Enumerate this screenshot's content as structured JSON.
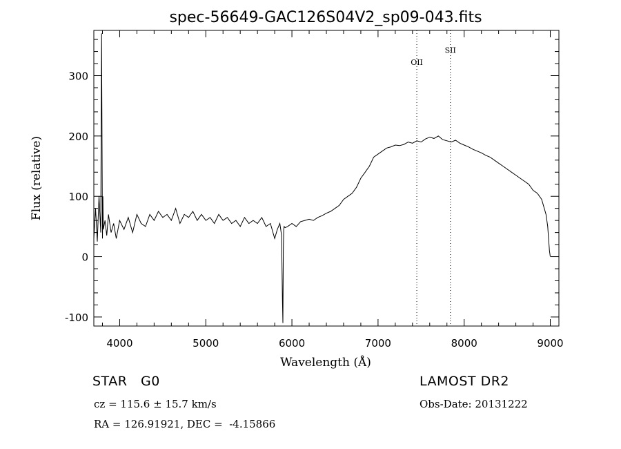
{
  "chart_data": {
    "type": "line",
    "title": "spec-56649-GAC126S04V2_sp09-043.fits",
    "xlabel": "Wavelength (Å)",
    "ylabel": "Flux (relative)",
    "xlim": [
      3700,
      9100
    ],
    "ylim": [
      -115,
      375
    ],
    "x_ticks": [
      4000,
      5000,
      6000,
      7000,
      8000,
      9000
    ],
    "y_ticks": [
      -100,
      0,
      100,
      200,
      300
    ],
    "grid": false,
    "line_color": "#000000",
    "series": [
      {
        "x": [
          3700,
          3720,
          3740,
          3760,
          3780,
          3790,
          3800,
          3805,
          3810,
          3830,
          3850,
          3870,
          3900,
          3930,
          3960,
          4000,
          4050,
          4100,
          4150,
          4200,
          4250,
          4300,
          4350,
          4400,
          4450,
          4500,
          4550,
          4600,
          4650,
          4700,
          4750,
          4800,
          4850,
          4900,
          4950,
          5000,
          5050,
          5100,
          5150,
          5200,
          5250,
          5300,
          5350,
          5400,
          5450,
          5500,
          5550,
          5600,
          5650,
          5700,
          5750,
          5780,
          5800,
          5830,
          5860,
          5880,
          5890,
          5895,
          5900,
          5905,
          5910,
          5920,
          5950,
          6000,
          6050,
          6100,
          6150,
          6200,
          6250,
          6300,
          6350,
          6400,
          6450,
          6500,
          6550,
          6600,
          6650,
          6700,
          6750,
          6800,
          6850,
          6900,
          6950,
          7000,
          7050,
          7100,
          7150,
          7200,
          7250,
          7300,
          7350,
          7400,
          7450,
          7500,
          7550,
          7600,
          7650,
          7700,
          7750,
          7800,
          7850,
          7900,
          7950,
          8000,
          8050,
          8100,
          8150,
          8200,
          8250,
          8300,
          8350,
          8400,
          8450,
          8500,
          8550,
          8600,
          8650,
          8700,
          8750,
          8800,
          8850,
          8900,
          8930,
          8950,
          8970,
          8980,
          8990,
          9000
        ],
        "y": [
          30,
          80,
          25,
          100,
          40,
          370,
          30,
          100,
          45,
          60,
          35,
          70,
          40,
          55,
          30,
          60,
          45,
          65,
          40,
          70,
          55,
          50,
          70,
          60,
          75,
          65,
          70,
          60,
          80,
          55,
          70,
          65,
          75,
          60,
          70,
          60,
          65,
          55,
          70,
          60,
          65,
          55,
          60,
          50,
          65,
          55,
          60,
          55,
          65,
          50,
          55,
          40,
          30,
          45,
          55,
          35,
          -70,
          -110,
          10,
          45,
          50,
          48,
          50,
          55,
          50,
          58,
          60,
          62,
          60,
          65,
          68,
          72,
          75,
          80,
          85,
          95,
          100,
          105,
          115,
          130,
          140,
          150,
          165,
          170,
          175,
          180,
          182,
          185,
          184,
          186,
          190,
          188,
          192,
          190,
          195,
          198,
          196,
          200,
          194,
          192,
          190,
          193,
          188,
          185,
          182,
          178,
          175,
          172,
          168,
          165,
          160,
          155,
          150,
          145,
          140,
          135,
          130,
          125,
          120,
          110,
          105,
          95,
          80,
          70,
          50,
          30,
          10,
          0
        ]
      }
    ],
    "annotations": [
      {
        "label": "OII",
        "x": 7450,
        "y": 318
      },
      {
        "label": "SII",
        "x": 7840,
        "y": 338
      }
    ],
    "line_markers_x": [
      7450,
      7840
    ]
  },
  "info": {
    "object_class": "STAR   G0",
    "survey": "LAMOST DR2",
    "redshift": "cz = 115.6 ± 15.7 km/s",
    "obs_date": "Obs-Date: 20131222",
    "coords": "RA = 126.91921, DEC =  -4.15866"
  }
}
